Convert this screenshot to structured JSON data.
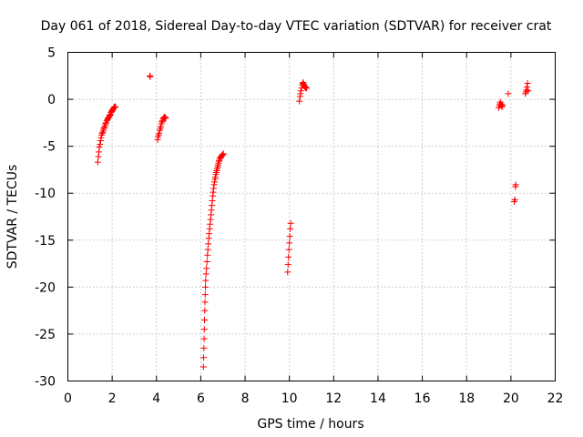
{
  "chart_data": {
    "type": "scatter",
    "title": "Day 061 of 2018, Sidereal Day-to-day VTEC variation (SDTVAR) for receiver crat",
    "xlabel": "GPS time / hours",
    "ylabel": "SDTVAR / TECUs",
    "xlim": [
      0,
      22
    ],
    "ylim": [
      -30,
      5
    ],
    "xticks": [
      0,
      2,
      4,
      6,
      8,
      10,
      12,
      14,
      16,
      18,
      20,
      22
    ],
    "yticks": [
      5,
      0,
      -5,
      -10,
      -15,
      -20,
      -25,
      -30
    ],
    "grid": true,
    "marker": "plus",
    "color": "#ff0000",
    "series": [
      {
        "name": "SDTVAR",
        "x": [
          1.35,
          1.38,
          1.4,
          1.42,
          1.45,
          1.48,
          1.5,
          1.52,
          1.55,
          1.58,
          1.6,
          1.62,
          1.65,
          1.68,
          1.7,
          1.72,
          1.75,
          1.78,
          1.8,
          1.82,
          1.85,
          1.88,
          1.9,
          1.92,
          1.95,
          1.98,
          2.0,
          2.02,
          2.05,
          2.08,
          2.1,
          2.12,
          2.15,
          3.7,
          3.72,
          4.05,
          4.07,
          4.1,
          4.12,
          4.15,
          4.17,
          4.2,
          4.22,
          4.25,
          4.27,
          4.3,
          4.32,
          4.35,
          4.38,
          4.4,
          4.42,
          6.12,
          6.13,
          6.14,
          6.15,
          6.16,
          6.17,
          6.18,
          6.19,
          6.2,
          6.21,
          6.22,
          6.24,
          6.26,
          6.28,
          6.3,
          6.32,
          6.34,
          6.36,
          6.38,
          6.4,
          6.42,
          6.44,
          6.46,
          6.48,
          6.5,
          6.52,
          6.54,
          6.56,
          6.58,
          6.6,
          6.62,
          6.64,
          6.66,
          6.68,
          6.7,
          6.72,
          6.74,
          6.76,
          6.78,
          6.8,
          6.82,
          6.84,
          6.86,
          6.88,
          6.9,
          6.92,
          6.95,
          6.98,
          7.0,
          7.02,
          9.92,
          9.94,
          9.96,
          9.98,
          10.0,
          10.02,
          10.04,
          10.06,
          10.45,
          10.48,
          10.5,
          10.52,
          10.55,
          10.58,
          10.6,
          10.62,
          10.65,
          10.68,
          10.7,
          10.72,
          10.75,
          10.78,
          19.45,
          19.48,
          19.5,
          19.52,
          19.55,
          19.58,
          19.6,
          19.62,
          19.88,
          20.15,
          20.18,
          20.2,
          20.22,
          20.65,
          20.68,
          20.7,
          20.72,
          20.75,
          20.78
        ],
        "y": [
          -6.7,
          -6.1,
          -5.6,
          -5.1,
          -4.8,
          -4.4,
          -4.1,
          -3.8,
          -3.6,
          -3.5,
          -3.3,
          -3.1,
          -3.0,
          -2.8,
          -2.6,
          -2.5,
          -2.3,
          -2.2,
          -2.1,
          -2.0,
          -1.9,
          -1.8,
          -1.7,
          -1.6,
          -1.4,
          -1.3,
          -1.2,
          -1.1,
          -1.0,
          -0.9,
          -0.8,
          -0.8,
          -0.8,
          2.5,
          2.4,
          -4.3,
          -4.0,
          -3.8,
          -3.6,
          -3.3,
          -3.1,
          -2.9,
          -2.6,
          -2.4,
          -2.3,
          -2.1,
          -2.0,
          -1.9,
          -1.9,
          -2.0,
          -2.0,
          -28.5,
          -27.5,
          -26.5,
          -25.5,
          -24.5,
          -23.5,
          -22.5,
          -21.6,
          -20.8,
          -20.0,
          -19.3,
          -18.6,
          -18.0,
          -17.3,
          -16.6,
          -16.0,
          -15.4,
          -14.8,
          -14.3,
          -13.8,
          -13.3,
          -12.8,
          -12.3,
          -11.8,
          -11.3,
          -10.8,
          -10.3,
          -9.9,
          -9.5,
          -9.1,
          -8.8,
          -8.5,
          -8.3,
          -8.0,
          -7.8,
          -7.6,
          -7.4,
          -7.2,
          -7.0,
          -6.8,
          -6.6,
          -6.5,
          -6.3,
          -6.3,
          -6.2,
          -6.1,
          -6.0,
          -5.9,
          -5.9,
          -5.8,
          -18.4,
          -17.6,
          -16.8,
          -16.0,
          -15.3,
          -14.6,
          -13.8,
          -13.2,
          -0.2,
          0.3,
          0.6,
          0.9,
          1.2,
          1.5,
          1.7,
          1.8,
          1.6,
          1.4,
          1.3,
          1.3,
          1.2,
          1.2,
          -0.9,
          -0.7,
          -0.5,
          -0.3,
          -0.5,
          -0.7,
          -0.8,
          -0.6,
          0.6,
          -10.9,
          -10.7,
          -9.3,
          -9.1,
          0.6,
          0.8,
          1.0,
          1.3,
          1.7,
          0.9
        ]
      }
    ]
  }
}
